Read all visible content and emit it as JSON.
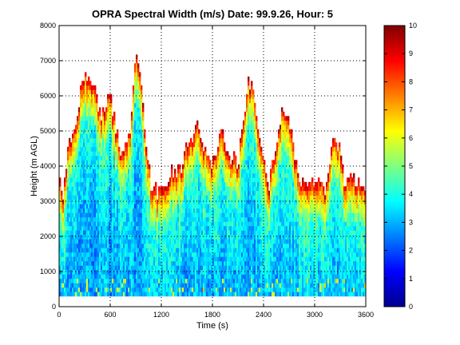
{
  "chart_data": {
    "type": "heatmap",
    "title": "OPRA Spectral Width (m/s)  Date: 99.9.26, Hour: 5",
    "xlabel": "Time (s)",
    "ylabel": "Height (m AGL)",
    "xlim": [
      0,
      3600
    ],
    "ylim": [
      0,
      8000
    ],
    "x_ticks": [
      "0",
      "600",
      "1200",
      "1800",
      "2400",
      "3000",
      "3600"
    ],
    "y_ticks": [
      "0",
      "1000",
      "2000",
      "3000",
      "4000",
      "5000",
      "6000",
      "7000",
      "8000"
    ],
    "grid": true,
    "colorbar": {
      "colormap": "jet",
      "range": [
        0,
        10
      ],
      "ticks": [
        "0",
        "1",
        "2",
        "3",
        "4",
        "5",
        "6",
        "7",
        "8",
        "9",
        "10"
      ]
    },
    "data_bottom_height": 300,
    "echo_top_profile": {
      "time": [
        0,
        60,
        120,
        180,
        240,
        300,
        360,
        420,
        480,
        540,
        600,
        660,
        720,
        780,
        840,
        900,
        960,
        1020,
        1080,
        1140,
        1200,
        1260,
        1320,
        1380,
        1440,
        1500,
        1560,
        1620,
        1680,
        1740,
        1800,
        1860,
        1920,
        1980,
        2040,
        2100,
        2160,
        2220,
        2280,
        2340,
        2400,
        2460,
        2520,
        2580,
        2640,
        2700,
        2760,
        2820,
        2880,
        2940,
        3000,
        3060,
        3120,
        3180,
        3240,
        3300,
        3360,
        3420,
        3480,
        3540,
        3600
      ],
      "top_height": [
        3400,
        3200,
        4700,
        4900,
        5900,
        6500,
        6500,
        6100,
        5400,
        5700,
        6000,
        5000,
        4400,
        4700,
        4900,
        7400,
        6500,
        4600,
        3400,
        3200,
        3400,
        3200,
        3700,
        3800,
        3900,
        4600,
        4800,
        5200,
        4600,
        4100,
        4000,
        4300,
        5100,
        4300,
        4100,
        4000,
        5200,
        6300,
        6200,
        4800,
        4000,
        3300,
        4200,
        5000,
        5700,
        5200,
        4300,
        3600,
        3400,
        3400,
        3600,
        3500,
        3200,
        4300,
        4900,
        4300,
        3400,
        3500,
        3400,
        3400,
        3400
      ]
    }
  }
}
